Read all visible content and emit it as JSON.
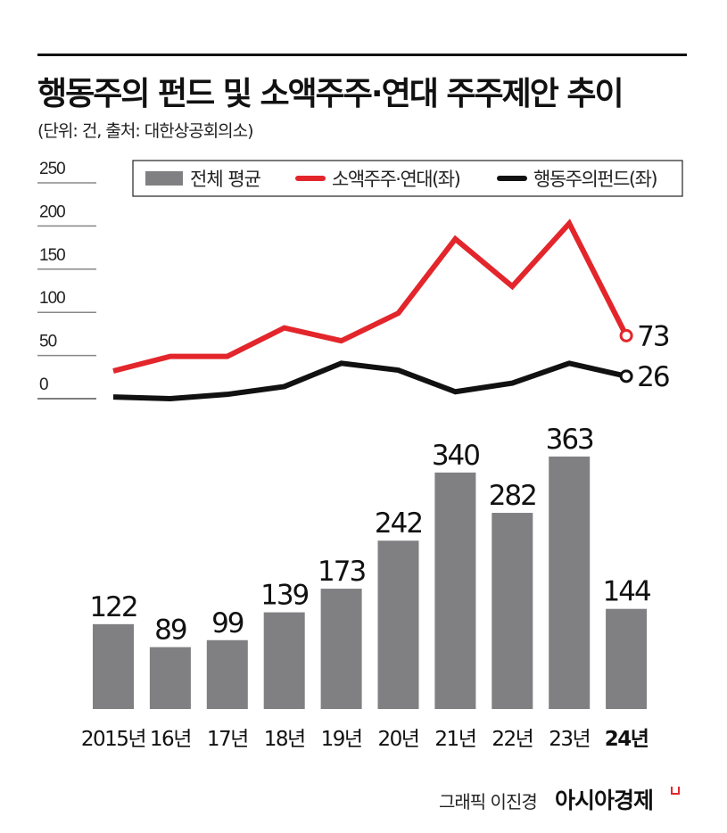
{
  "title": "행동주의 펀드 및 소액주주·연대 주주제안 추이",
  "subtitle": "(단위: 건, 출처: 대한상공회의소)",
  "credit": "그래픽 이진경",
  "brand": "아시아경제",
  "colors": {
    "bar": "#808083",
    "retail": "#e3262b",
    "activist": "#111111"
  },
  "chart_data": [
    {
      "type": "line",
      "categories": [
        "2015년",
        "16년",
        "17년",
        "18년",
        "19년",
        "20년",
        "21년",
        "22년",
        "23년",
        "24년"
      ],
      "ylim": [
        0,
        250
      ],
      "yticks": [
        "0",
        "50",
        "100",
        "150",
        "200",
        "250"
      ],
      "grid": true,
      "legend": "top",
      "series": [
        {
          "name": "소액주주·연대(좌)",
          "values": [
            32,
            49,
            49,
            82,
            67,
            99,
            185,
            130,
            203,
            73
          ],
          "end_label": "73"
        },
        {
          "name": "행동주의펀드(좌)",
          "values": [
            2,
            0,
            5,
            14,
            41,
            33,
            8,
            18,
            41,
            26
          ],
          "end_label": "26"
        }
      ]
    },
    {
      "type": "bar",
      "series_name": "전체 평균",
      "categories": [
        "2015년",
        "16년",
        "17년",
        "18년",
        "19년",
        "20년",
        "21년",
        "22년",
        "23년",
        "24년"
      ],
      "values": [
        122,
        89,
        99,
        139,
        173,
        242,
        340,
        282,
        363,
        144
      ],
      "labels": [
        "122",
        "89",
        "99",
        "139",
        "173",
        "242",
        "340",
        "282",
        "363",
        "144"
      ]
    }
  ]
}
